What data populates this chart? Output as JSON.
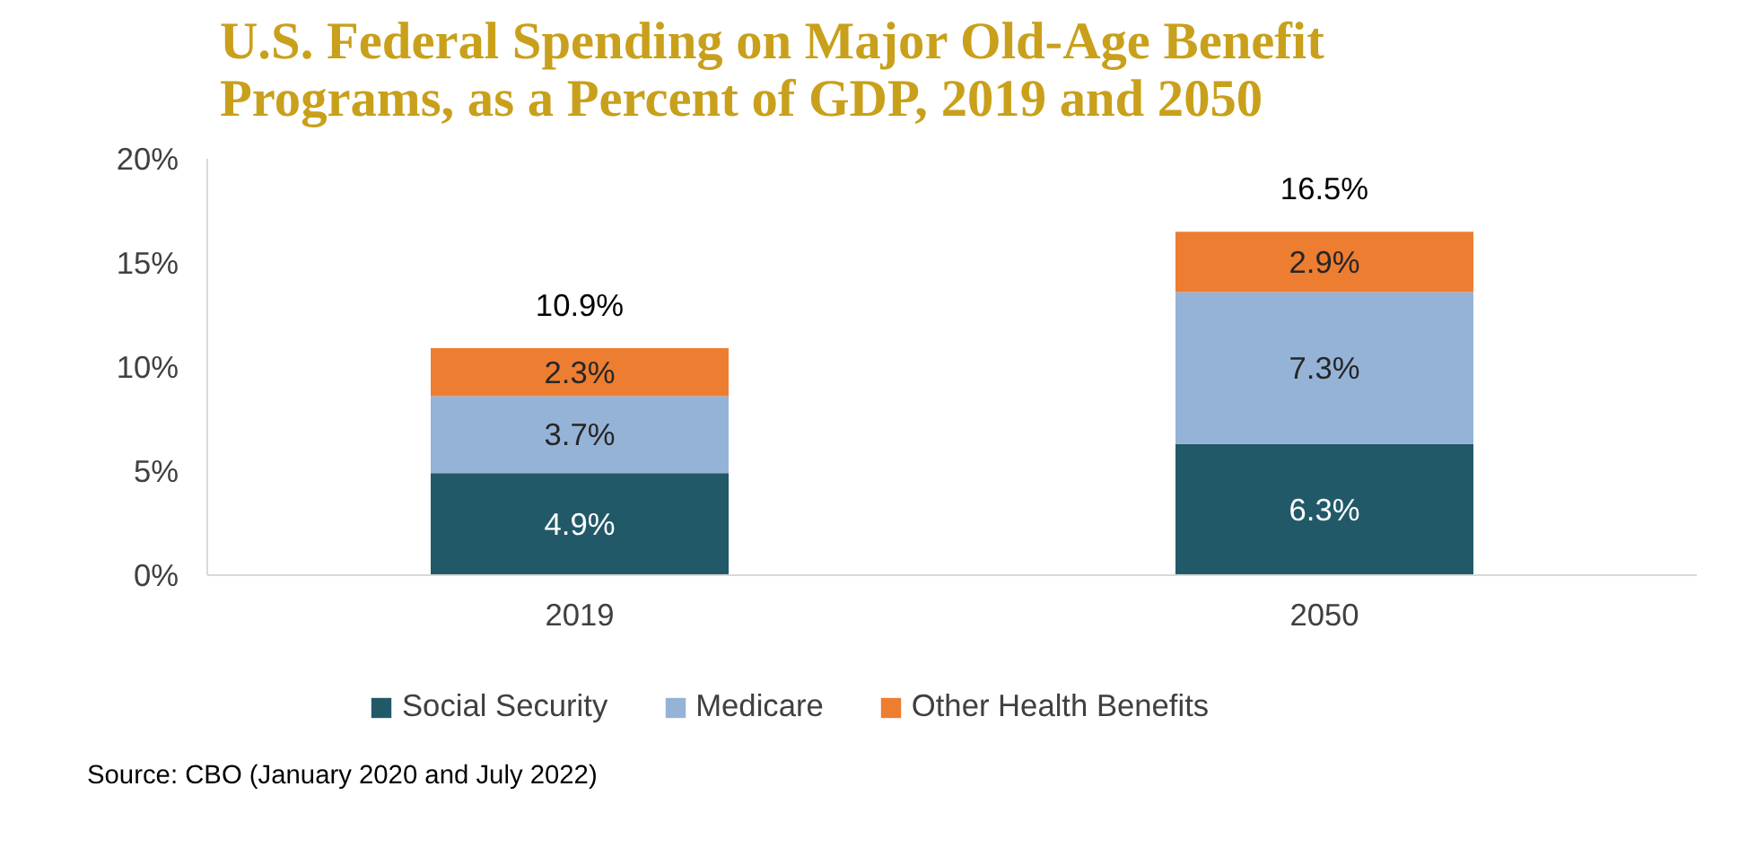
{
  "chart_data": {
    "type": "bar",
    "title": "U.S. Federal Spending on Major Old-Age Benefit Programs, as a Percent of GDP, 2019 and 2050",
    "categories": [
      "2019",
      "2050"
    ],
    "stacked": true,
    "series": [
      {
        "name": "Social Security",
        "color": "#215968",
        "values": [
          4.9,
          6.3
        ],
        "value_labels": [
          "4.9%",
          "6.3%"
        ]
      },
      {
        "name": "Medicare",
        "color": "#95b3d7",
        "values": [
          3.7,
          7.3
        ],
        "value_labels": [
          "3.7%",
          "7.3%"
        ]
      },
      {
        "name": "Other Health Benefits",
        "color": "#ed7d31",
        "values": [
          2.3,
          2.9
        ],
        "value_labels": [
          "2.3%",
          "2.9%"
        ]
      }
    ],
    "totals": [
      "10.9%",
      "16.5%"
    ],
    "ylim": [
      0,
      20
    ],
    "yticks": [
      {
        "value": 0,
        "label": "0%"
      },
      {
        "value": 5,
        "label": "5%"
      },
      {
        "value": 10,
        "label": "10%"
      },
      {
        "value": 15,
        "label": "15%"
      },
      {
        "value": 20,
        "label": "20%"
      }
    ],
    "grid": false,
    "legend": "bottom",
    "annotations": [
      "Source: CBO (January 2020 and July 2022)"
    ]
  }
}
